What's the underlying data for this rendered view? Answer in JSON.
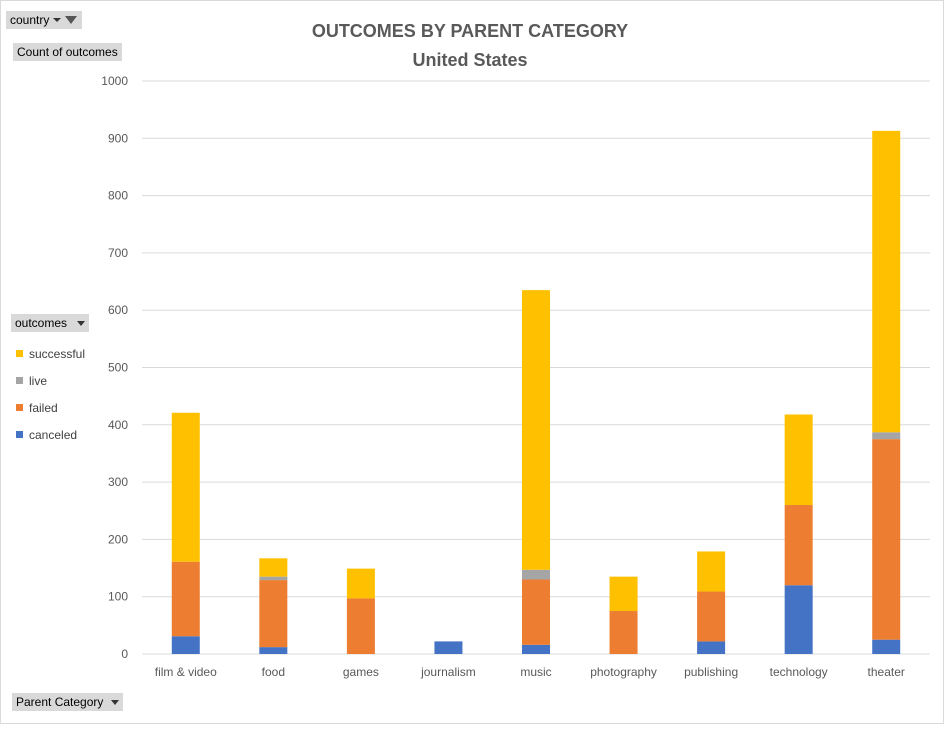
{
  "filters": {
    "country_label": "country",
    "value_label": "Count of outcomes",
    "legend_label": "outcomes",
    "axis_label": "Parent Category"
  },
  "icons": {
    "filter": "filter-icon",
    "dropdown": "dropdown-arrow-icon"
  },
  "colors": {
    "successful": "#ffc000",
    "live": "#a5a5a5",
    "failed": "#ed7d31",
    "canceled": "#4472c4",
    "grid": "#d9d9d9",
    "text": "#595959"
  },
  "chart_data": {
    "type": "bar",
    "stacked": true,
    "title": "OUTCOMES BY PARENT CATEGORY",
    "subtitle": "United States",
    "xlabel": "",
    "ylabel": "",
    "ylim": [
      0,
      1000
    ],
    "yticks": [
      0,
      100,
      200,
      300,
      400,
      500,
      600,
      700,
      800,
      900,
      1000
    ],
    "grid": true,
    "legend_position": "left",
    "categories": [
      "film & video",
      "food",
      "games",
      "journalism",
      "music",
      "photography",
      "publishing",
      "technology",
      "theater"
    ],
    "series": [
      {
        "name": "canceled",
        "values": [
          31,
          12,
          0,
          22,
          16,
          0,
          22,
          120,
          25
        ]
      },
      {
        "name": "failed",
        "values": [
          130,
          117,
          97,
          0,
          114,
          75,
          87,
          140,
          350
        ]
      },
      {
        "name": "live",
        "values": [
          0,
          6,
          0,
          0,
          17,
          0,
          0,
          0,
          12
        ]
      },
      {
        "name": "successful",
        "values": [
          260,
          32,
          52,
          0,
          488,
          60,
          70,
          158,
          526
        ]
      }
    ],
    "legend_order": [
      "successful",
      "live",
      "failed",
      "canceled"
    ]
  }
}
